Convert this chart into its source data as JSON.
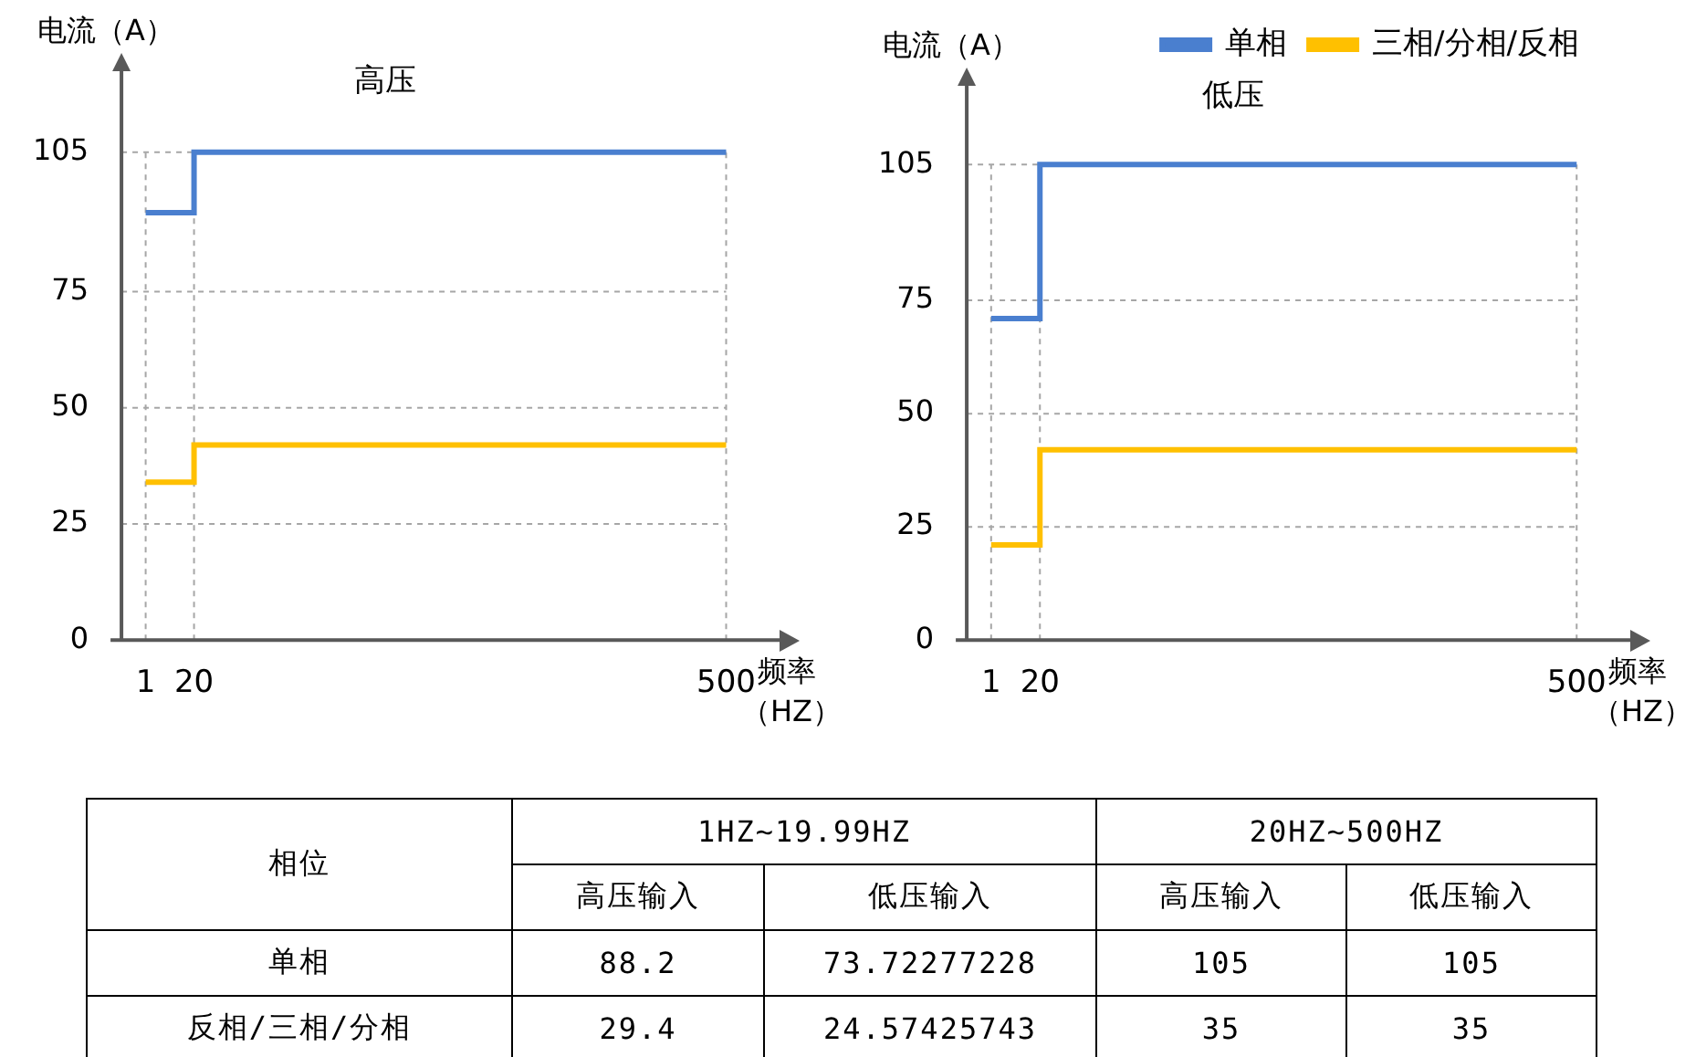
{
  "chart_data": [
    {
      "type": "step",
      "title": "高压",
      "xlabel": "频率（HZ）",
      "ylabel": "电流（A）",
      "categories": [
        "1",
        "20",
        null,
        null,
        null,
        null,
        null,
        null,
        null,
        null,
        null,
        null,
        "500"
      ],
      "series": [
        {
          "color": "#4a7fcf",
          "values": [
            92,
            105,
            105,
            105,
            105,
            105,
            105,
            105,
            105,
            105,
            105,
            105,
            105
          ]
        },
        {
          "color": "#ffc000",
          "values": [
            34,
            42,
            42,
            42,
            42,
            42,
            42,
            42,
            42,
            42,
            42,
            42,
            42
          ]
        }
      ],
      "ylim": [
        0,
        124
      ],
      "yticks": [
        0,
        25,
        50,
        75,
        105
      ],
      "grid": true
    },
    {
      "type": "step",
      "title": "低压",
      "xlabel": "频率（HZ）",
      "ylabel": "电流（A）",
      "categories": [
        "1",
        "20",
        null,
        null,
        null,
        null,
        null,
        null,
        null,
        null,
        null,
        null,
        "500"
      ],
      "series": [
        {
          "name": "单相",
          "color": "#4a7fcf",
          "values": [
            71,
            105,
            105,
            105,
            105,
            105,
            105,
            105,
            105,
            105,
            105,
            105,
            105
          ]
        },
        {
          "name": "三相/分相/反相",
          "color": "#ffc000",
          "values": [
            21,
            42,
            42,
            42,
            42,
            42,
            42,
            42,
            42,
            42,
            42,
            42,
            42
          ]
        }
      ],
      "ylim": [
        0,
        124
      ],
      "yticks": [
        0,
        25,
        50,
        75,
        105
      ],
      "grid": true,
      "legend": "top right"
    },
    {
      "type": "other",
      "annotations": [
        "相位",
        "1HZ~19.99HZ",
        "20HZ~500HZ",
        "高压输入",
        "低压输入",
        "高压输入",
        "低压输入",
        "单相",
        "88.2",
        "73.72277228",
        "105",
        "105",
        "反相/三相/分相",
        "29.4",
        "24.57425743",
        "35",
        "35"
      ]
    }
  ]
}
